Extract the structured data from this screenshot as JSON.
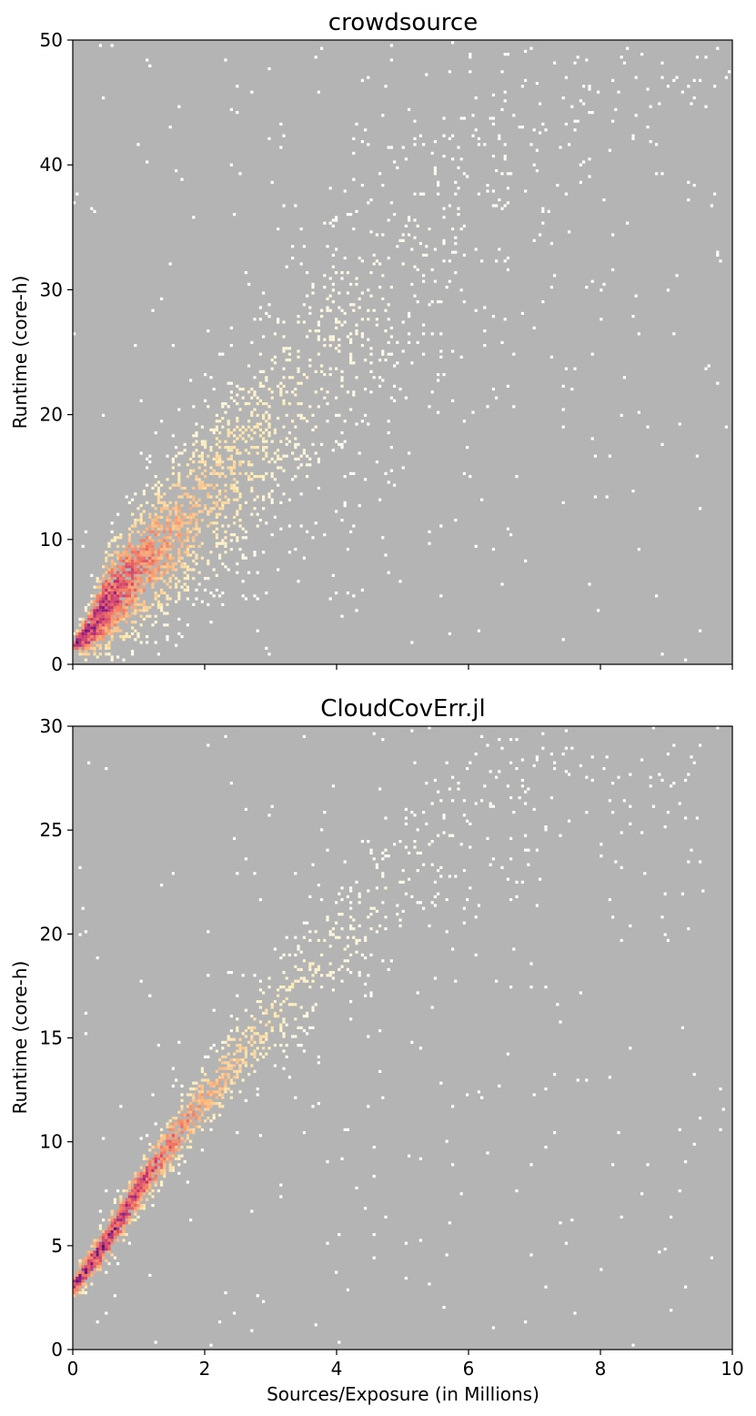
{
  "chart_data": [
    {
      "type": "heatmap",
      "title": "crowdsource",
      "xlabel": "",
      "ylabel": "Runtime (core-h)",
      "xlim": [
        0,
        10
      ],
      "ylim": [
        0,
        50
      ],
      "x_ticks": [
        0,
        2,
        4,
        6,
        8,
        10
      ],
      "y_ticks": [
        0,
        10,
        20,
        30,
        40,
        50
      ],
      "x_tick_labels_shown": false,
      "grid": false,
      "background_color": "#b4b4b4",
      "colormap": "magma",
      "density_trend": [
        {
          "x": 0.0,
          "y": 1.5,
          "spread": 0.3,
          "density": 1.0
        },
        {
          "x": 0.25,
          "y": 2.6,
          "spread": 1.2,
          "density": 1.0
        },
        {
          "x": 0.5,
          "y": 4.8,
          "spread": 2.2,
          "density": 0.95
        },
        {
          "x": 0.75,
          "y": 6.3,
          "spread": 2.5,
          "density": 0.85
        },
        {
          "x": 1.0,
          "y": 7.6,
          "spread": 2.8,
          "density": 0.7
        },
        {
          "x": 1.5,
          "y": 10.2,
          "spread": 3.3,
          "density": 0.5
        },
        {
          "x": 2.0,
          "y": 13.0,
          "spread": 3.8,
          "density": 0.35
        },
        {
          "x": 2.5,
          "y": 15.8,
          "spread": 4.3,
          "density": 0.25
        },
        {
          "x": 3.0,
          "y": 19.0,
          "spread": 4.8,
          "density": 0.16
        },
        {
          "x": 4.0,
          "y": 25.0,
          "spread": 5.5,
          "density": 0.09
        },
        {
          "x": 5.0,
          "y": 32.0,
          "spread": 6.0,
          "density": 0.05
        },
        {
          "x": 6.0,
          "y": 38.0,
          "spread": 6.0,
          "density": 0.03
        },
        {
          "x": 7.0,
          "y": 42.5,
          "spread": 5.5,
          "density": 0.02
        },
        {
          "x": 8.0,
          "y": 46.0,
          "spread": 4.5,
          "density": 0.015
        },
        {
          "x": 9.0,
          "y": 48.0,
          "spread": 3.5,
          "density": 0.01
        },
        {
          "x": 10.0,
          "y": 49.5,
          "spread": 3.0,
          "density": 0.008
        }
      ]
    },
    {
      "type": "heatmap",
      "title": "CloudCovErr.jl",
      "xlabel": "Sources/Exposure (in Millions)",
      "ylabel": "Runtime (core-h)",
      "xlim": [
        0,
        10
      ],
      "ylim": [
        0,
        30
      ],
      "x_ticks": [
        0,
        2,
        4,
        6,
        8,
        10
      ],
      "y_ticks": [
        0,
        5,
        10,
        15,
        20,
        25,
        30
      ],
      "x_tick_labels_shown": true,
      "grid": false,
      "background_color": "#b4b4b4",
      "colormap": "magma",
      "density_trend": [
        {
          "x": 0.0,
          "y": 3.0,
          "spread": 0.4,
          "density": 1.0
        },
        {
          "x": 0.5,
          "y": 5.1,
          "spread": 0.6,
          "density": 1.0
        },
        {
          "x": 1.0,
          "y": 7.7,
          "spread": 0.7,
          "density": 0.9
        },
        {
          "x": 1.5,
          "y": 10.0,
          "spread": 0.8,
          "density": 0.7
        },
        {
          "x": 2.0,
          "y": 12.0,
          "spread": 0.9,
          "density": 0.5
        },
        {
          "x": 2.5,
          "y": 13.9,
          "spread": 1.1,
          "density": 0.35
        },
        {
          "x": 3.0,
          "y": 15.8,
          "spread": 1.3,
          "density": 0.22
        },
        {
          "x": 3.5,
          "y": 17.6,
          "spread": 1.5,
          "density": 0.15
        },
        {
          "x": 4.0,
          "y": 19.4,
          "spread": 1.7,
          "density": 0.1
        },
        {
          "x": 5.0,
          "y": 22.5,
          "spread": 2.0,
          "density": 0.06
        },
        {
          "x": 6.0,
          "y": 25.5,
          "spread": 2.2,
          "density": 0.035
        },
        {
          "x": 7.0,
          "y": 27.8,
          "spread": 2.2,
          "density": 0.02
        },
        {
          "x": 8.0,
          "y": 29.3,
          "spread": 2.0,
          "density": 0.012
        },
        {
          "x": 9.0,
          "y": 29.8,
          "spread": 1.8,
          "density": 0.008
        },
        {
          "x": 10.0,
          "y": 30.0,
          "spread": 1.5,
          "density": 0.006
        }
      ]
    }
  ]
}
